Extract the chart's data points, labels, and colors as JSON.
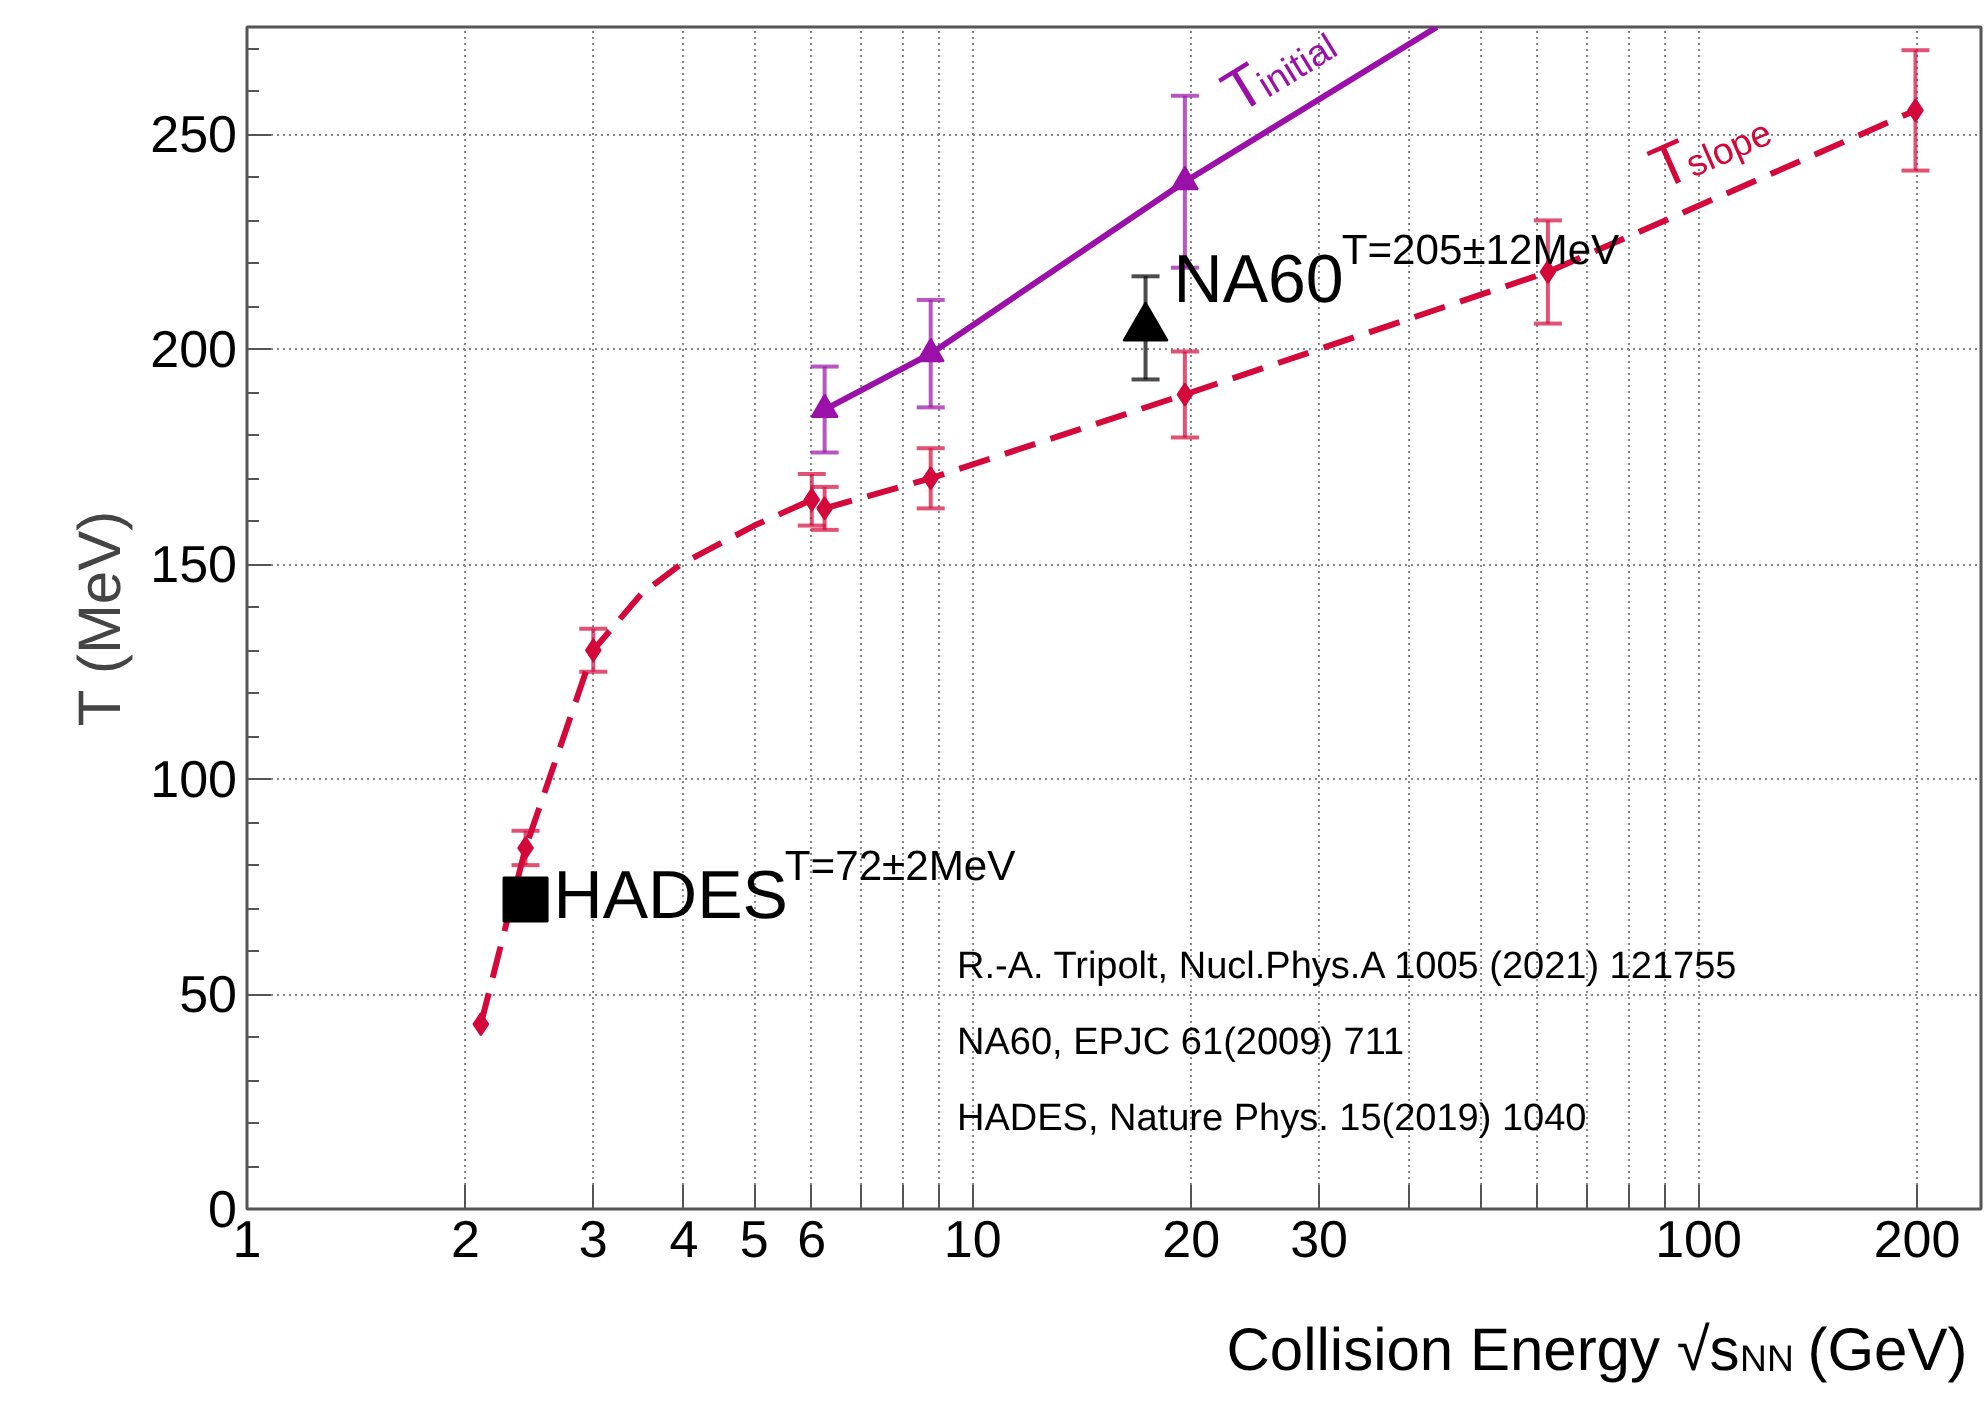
{
  "chart_data": {
    "type": "scatter",
    "xlabel": "Collision Energy √s$_{NN}$ (GeV)",
    "ylabel": "T (MeV)",
    "log": "x",
    "xlim": [
      1,
      245
    ],
    "ylim": [
      0,
      275
    ],
    "xticks": [
      1,
      2,
      3,
      4,
      5,
      6,
      {
        "value": 7,
        "label": null
      },
      {
        "value": 8,
        "label": null
      },
      {
        "value": 9,
        "label": null
      },
      10,
      20,
      30,
      {
        "value": 40,
        "label": null
      },
      {
        "value": 50,
        "label": null
      },
      {
        "value": 60,
        "label": null
      },
      {
        "value": 70,
        "label": null
      },
      {
        "value": 80,
        "label": null
      },
      {
        "value": 90,
        "label": null
      },
      100,
      200
    ],
    "yticks": [
      0,
      50,
      100,
      150,
      200,
      250
    ],
    "grid": true,
    "series": [
      {
        "type": "line",
        "name": "T$_{slope}$",
        "color": "#d4083a",
        "line_style": "dashed",
        "marker": "none",
        "x": [
          2.1,
          2.42,
          3,
          3.49,
          3.96,
          5.0,
          6.0,
          6.25,
          8.75,
          19.6,
          62,
          199
        ],
        "values": [
          43,
          84,
          130,
          143,
          150,
          159,
          165,
          163,
          170,
          189.5,
          218,
          255.6
        ]
      },
      {
        "color": "#d4083a",
        "marker": "diamond",
        "x": [
          2.1,
          2.42,
          3,
          6.0,
          6.25,
          8.75,
          19.6,
          62,
          199
        ],
        "values": [
          43,
          84,
          130,
          165,
          163,
          170,
          189.5,
          218,
          255.6
        ],
        "errors": [
          null,
          4,
          5,
          6,
          5,
          7,
          10,
          12,
          14
        ]
      },
      {
        "type": "line",
        "name": "T$_{initial}$",
        "color": "#9b10a8",
        "line_style": "solid",
        "marker": "none",
        "x": [
          6.25,
          8.75,
          19.6,
          43.6
        ],
        "values": [
          186,
          199,
          239,
          275
        ]
      },
      {
        "color": "#9b10a8",
        "marker": "triangle",
        "x": [
          6.25,
          8.75,
          19.6
        ],
        "values": [
          186,
          199,
          239
        ],
        "errors": [
          10,
          12.5,
          20
        ]
      },
      {
        "name": "NA60$^{T=205±12MeV}$",
        "color": "#000000",
        "marker": "triangle",
        "x": [
          17.3
        ],
        "values": [
          205
        ],
        "errors": [
          12
        ]
      },
      {
        "name": "HADES$^{T=72±2MeV}$",
        "color": "#000000",
        "marker": "square",
        "x": [
          2.42
        ],
        "values": [
          72
        ],
        "errors": [
          2
        ]
      }
    ],
    "annotations": [
      "R.-A. Tripolt, Nucl.Phys.A 1005 (2021) 121755",
      "NA60, EPJC 61(2009) 711",
      "HADES, Nature Phys. 15(2019) 1040"
    ]
  }
}
